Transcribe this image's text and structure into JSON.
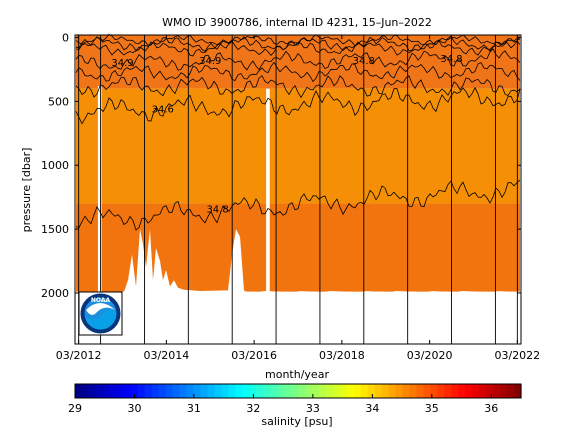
{
  "chart_data": {
    "type": "heatmap",
    "title": "WMO ID 3900786, internal ID 4231, 15–Jun–2022",
    "xlabel": "month/year",
    "ylabel": "pressure [dbar]",
    "x_tick_labels": [
      "03/2012",
      "03/2014",
      "03/2016",
      "03/2018",
      "03/2020",
      "03/2022"
    ],
    "x_range": [
      "02/2012",
      "04/2022"
    ],
    "y_ticks": [
      0,
      500,
      1000,
      1500,
      2000
    ],
    "y_range": [
      2400,
      -20
    ],
    "y_reversed": true,
    "colorbar": {
      "label": "salinity [psu]",
      "range": [
        29,
        36.5
      ],
      "ticks": [
        29,
        30,
        31,
        32,
        33,
        34,
        35,
        36
      ],
      "colormap": "jet"
    },
    "fill_colors": {
      "upper": "#f07418",
      "deep": "#f59006",
      "bottom": "#f2740e"
    },
    "contour_labels": [
      {
        "text": "34.9",
        "x": "03/2013",
        "y": 190
      },
      {
        "text": "34.9",
        "x": "03/2015",
        "y": 175
      },
      {
        "text": "34.6",
        "x": "02/2014",
        "y": 555
      },
      {
        "text": "34.8",
        "x": "09/2018",
        "y": 175
      },
      {
        "text": "34.8",
        "x": "09/2020",
        "y": 160
      },
      {
        "text": "34.8",
        "x": "05/2015",
        "y": 1340
      }
    ],
    "profile_lines_x": [
      "03/2012",
      "09/2012",
      "09/2013",
      "09/2014",
      "09/2015",
      "09/2016",
      "09/2017",
      "09/2018",
      "09/2019",
      "09/2020",
      "09/2021",
      "03/2022"
    ],
    "data_gaps": [
      {
        "from": "08/2012",
        "to": "09/2012",
        "bottom_dbar": 380
      },
      {
        "from": "06/2016",
        "to": "07/2016",
        "bottom_dbar": 400
      }
    ],
    "profile_max_depth_dbar": 1990
  },
  "logo": {
    "text": "NOAA"
  }
}
